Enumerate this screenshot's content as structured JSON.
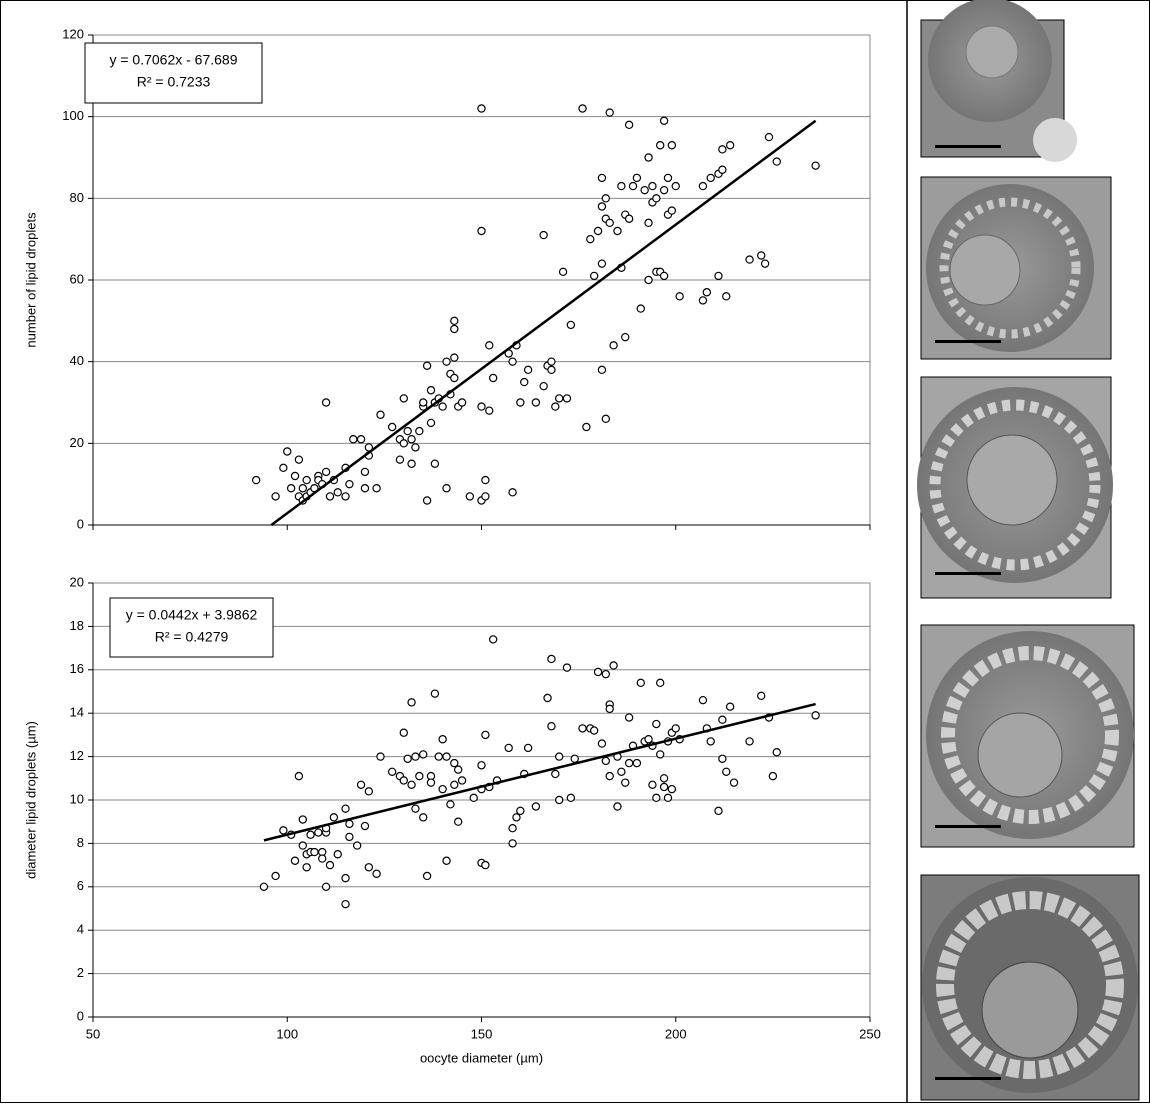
{
  "chart_data": [
    {
      "type": "scatter",
      "ylabel": "number of lipid droplets",
      "annotation": {
        "equation": "y = 0.7062x - 67.689",
        "r2": "R² = 0.7233"
      },
      "xlim": [
        50,
        250
      ],
      "xticks": [
        50,
        100,
        150,
        200,
        250
      ],
      "ylim": [
        0,
        120
      ],
      "yticks": [
        0,
        20,
        40,
        60,
        80,
        100,
        120
      ],
      "grid": true,
      "color": "#000000",
      "x": [
        92,
        97,
        99,
        100,
        101,
        102,
        103,
        103,
        104,
        104,
        105,
        105,
        106,
        107,
        108,
        108,
        109,
        110,
        110,
        111,
        112,
        113,
        115,
        115,
        116,
        117,
        119,
        120,
        120,
        121,
        121,
        123,
        124,
        127,
        129,
        129,
        130,
        130,
        131,
        132,
        132,
        133,
        134,
        135,
        135,
        136,
        136,
        137,
        137,
        138,
        138,
        139,
        140,
        141,
        141,
        142,
        142,
        143,
        143,
        143,
        143,
        144,
        145,
        147,
        150,
        150,
        150,
        150,
        151,
        151,
        152,
        152,
        153,
        157,
        158,
        158,
        159,
        160,
        161,
        162,
        164,
        166,
        166,
        167,
        168,
        168,
        169,
        170,
        171,
        172,
        173,
        176,
        177,
        178,
        179,
        180,
        181,
        181,
        181,
        181,
        182,
        182,
        182,
        183,
        183,
        184,
        185,
        186,
        186,
        187,
        187,
        188,
        188,
        189,
        190,
        191,
        192,
        193,
        193,
        193,
        194,
        194,
        195,
        195,
        196,
        196,
        197,
        197,
        197,
        198,
        198,
        199,
        199,
        200,
        201,
        207,
        207,
        208,
        209,
        211,
        211,
        212,
        212,
        213,
        214,
        219,
        222,
        223,
        224,
        226,
        236
      ],
      "values": [
        11,
        7,
        14,
        18,
        9,
        12,
        16,
        7,
        9,
        6,
        7,
        11,
        8,
        9,
        12,
        11,
        10,
        30,
        13,
        7,
        11,
        8,
        14,
        7,
        10,
        21,
        21,
        13,
        9,
        17,
        19,
        9,
        27,
        24,
        21,
        16,
        31,
        20,
        23,
        21,
        15,
        19,
        23,
        29,
        30,
        6,
        39,
        25,
        33,
        15,
        30,
        31,
        29,
        9,
        40,
        37,
        32,
        50,
        48,
        41,
        36,
        29,
        30,
        7,
        102,
        72,
        29,
        6,
        11,
        7,
        44,
        28,
        36,
        42,
        8,
        40,
        44,
        30,
        35,
        38,
        30,
        71,
        34,
        39,
        38,
        40,
        29,
        31,
        62,
        31,
        49,
        102,
        24,
        70,
        61,
        72,
        78,
        85,
        64,
        38,
        80,
        75,
        26,
        74,
        101,
        44,
        72,
        83,
        63,
        76,
        46,
        75,
        98,
        83,
        85,
        53,
        82,
        90,
        74,
        60,
        83,
        79,
        62,
        80,
        62,
        93,
        82,
        99,
        61,
        85,
        76,
        93,
        77,
        83,
        56,
        55,
        83,
        57,
        85,
        61,
        86,
        87,
        92,
        56,
        93,
        65,
        66,
        64,
        95,
        89,
        88
      ],
      "trend": {
        "x": [
          95.9,
          236
        ],
        "values": [
          0,
          99
        ]
      }
    },
    {
      "type": "scatter",
      "ylabel": "diameter lipid droplets (µm)",
      "xlabel": "oocyte diameter (µm)",
      "annotation": {
        "equation": "y = 0.0442x + 3.9862",
        "r2": "R² = 0.4279"
      },
      "xlim": [
        50,
        250
      ],
      "xticks": [
        50,
        100,
        150,
        200,
        250
      ],
      "ylim": [
        0,
        20
      ],
      "yticks": [
        0,
        2,
        4,
        6,
        8,
        10,
        12,
        14,
        16,
        18,
        20
      ],
      "grid": true,
      "color": "#000000",
      "x": [
        94,
        97,
        99,
        101,
        102,
        103,
        104,
        104,
        105,
        105,
        106,
        106,
        107,
        108,
        109,
        109,
        110,
        110,
        110,
        111,
        112,
        113,
        115,
        115,
        115,
        116,
        116,
        118,
        119,
        120,
        121,
        121,
        123,
        124,
        127,
        129,
        130,
        130,
        131,
        132,
        132,
        133,
        133,
        134,
        135,
        135,
        136,
        137,
        137,
        138,
        139,
        140,
        140,
        141,
        141,
        142,
        143,
        143,
        144,
        144,
        145,
        148,
        150,
        150,
        150,
        151,
        151,
        152,
        153,
        154,
        157,
        158,
        158,
        159,
        160,
        161,
        162,
        164,
        167,
        168,
        168,
        169,
        170,
        170,
        172,
        173,
        174,
        176,
        178,
        179,
        180,
        181,
        182,
        182,
        183,
        183,
        183,
        184,
        185,
        185,
        186,
        187,
        188,
        188,
        189,
        190,
        191,
        192,
        193,
        194,
        194,
        195,
        195,
        196,
        196,
        197,
        197,
        198,
        198,
        199,
        199,
        200,
        201,
        207,
        208,
        209,
        211,
        212,
        212,
        213,
        214,
        215,
        219,
        222,
        224,
        225,
        226,
        236
      ],
      "values": [
        6,
        6.5,
        8.6,
        8.4,
        7.2,
        11.1,
        7.9,
        9.1,
        7.5,
        6.9,
        8.4,
        7.6,
        7.6,
        8.5,
        7.6,
        7.3,
        6,
        8.5,
        8.7,
        7,
        9.2,
        7.5,
        9.6,
        6.4,
        5.2,
        8.9,
        8.3,
        7.9,
        10.7,
        8.8,
        10.4,
        6.9,
        6.6,
        12,
        11.3,
        11.1,
        13.1,
        10.9,
        11.9,
        10.7,
        14.5,
        12,
        9.6,
        11.1,
        12.1,
        9.2,
        6.5,
        11.1,
        10.8,
        14.9,
        12,
        10.5,
        12.8,
        7.2,
        12,
        9.8,
        11.7,
        10.7,
        9,
        11.4,
        10.9,
        10.1,
        10.5,
        7.1,
        11.6,
        13,
        7,
        10.6,
        17.4,
        10.9,
        12.4,
        8,
        8.7,
        9.2,
        9.5,
        11.2,
        12.4,
        9.7,
        14.7,
        16.5,
        13.4,
        11.2,
        10,
        12,
        16.1,
        10.1,
        11.9,
        13.3,
        13.3,
        13.2,
        15.9,
        12.6,
        15.8,
        11.8,
        14.4,
        14.2,
        11.1,
        16.2,
        12,
        9.7,
        11.3,
        10.8,
        13.8,
        11.7,
        12.5,
        11.7,
        15.4,
        12.7,
        12.8,
        10.7,
        12.5,
        13.5,
        10.1,
        12.1,
        15.4,
        11,
        10.6,
        12.7,
        10.1,
        13.1,
        10.5,
        13.3,
        12.8,
        14.6,
        13.3,
        12.7,
        9.5,
        13.7,
        11.9,
        11.3,
        14.3,
        10.8,
        12.7,
        14.8,
        13.8,
        11.1,
        12.2,
        13.9
      ],
      "trend": {
        "x": [
          94,
          236
        ],
        "values": [
          8.14,
          14.42
        ]
      }
    }
  ]
}
